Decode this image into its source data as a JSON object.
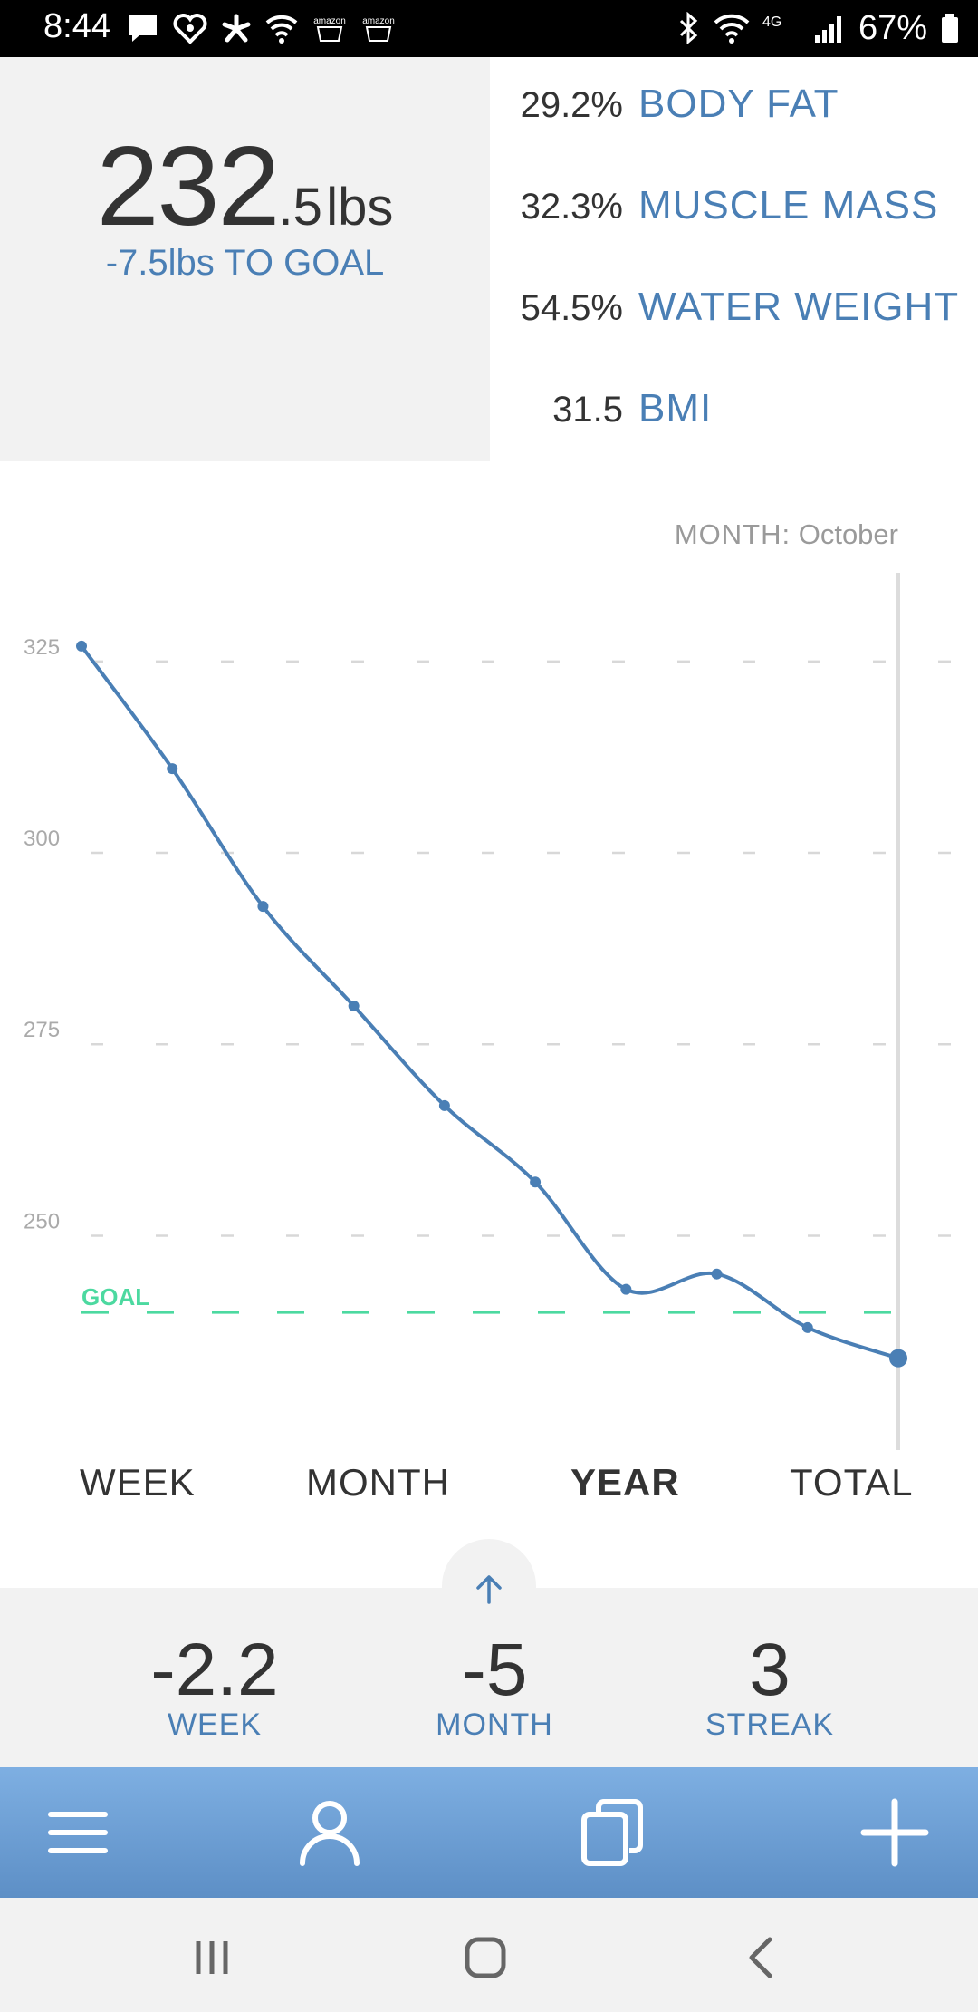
{
  "status_bar": {
    "time": "8:44",
    "icon_names": [
      "message-icon",
      "iheart-icon",
      "yelp-icon",
      "wifi-calling-icon",
      "amazon-icon",
      "amazon-icon",
      "bluetooth-icon",
      "wifi-icon",
      "lte-icon",
      "signal-icon",
      "battery-icon"
    ],
    "amazon_label": "amazon",
    "network_label": "4G",
    "battery": "67%"
  },
  "summary_top": {
    "weight_main": "232",
    "weight_decimal": ".5",
    "weight_unit": "lbs",
    "to_goal": "-7.5lbs TO GOAL"
  },
  "metrics": [
    {
      "value": "29.2%",
      "label": "BODY FAT"
    },
    {
      "value": "32.3%",
      "label": "MUSCLE MASS"
    },
    {
      "value": "54.5%",
      "label": "WATER WEIGHT"
    },
    {
      "value": "31.5",
      "label": "BMI"
    }
  ],
  "month_info": {
    "key": "MONTH:",
    "value": "October"
  },
  "chart_data": {
    "type": "line",
    "y_ticks": [
      250,
      275,
      300,
      325
    ],
    "ylim": [
      222,
      338
    ],
    "goal_value": 240,
    "goal_label": "GOAL",
    "x": [
      1,
      2,
      3,
      4,
      5,
      6,
      7,
      8,
      9,
      10
    ],
    "values": [
      327,
      311,
      293,
      280,
      267,
      257,
      243,
      245,
      238,
      234
    ],
    "line_color": "#4a7fb5",
    "goal_color": "#4cd9a0",
    "grid": "dashed horizontal"
  },
  "tabs": [
    {
      "label": "WEEK",
      "active": false
    },
    {
      "label": "MONTH",
      "active": false
    },
    {
      "label": "YEAR",
      "active": true
    },
    {
      "label": "TOTAL",
      "active": false
    }
  ],
  "stats": [
    {
      "value": "-2.2",
      "label": "WEEK"
    },
    {
      "value": "-5",
      "label": "MONTH"
    },
    {
      "value": "3",
      "label": "STREAK"
    }
  ],
  "bottom_nav": {
    "icons": [
      "menu-icon",
      "profile-icon",
      "copy-icon",
      "add-icon"
    ]
  },
  "system_nav": {
    "icons": [
      "recent-apps-icon",
      "home-icon",
      "back-icon"
    ]
  },
  "colors": {
    "accent": "#4a7fb5",
    "goal": "#4cd9a0",
    "nav_bar": "#6d9fd6",
    "panel": "#f2f2f2"
  }
}
